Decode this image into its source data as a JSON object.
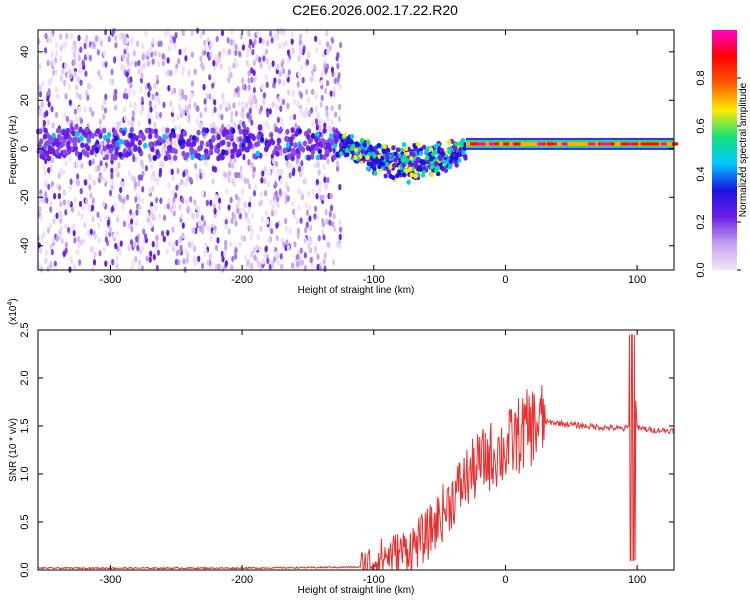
{
  "title": "C2E6.2026.002.17.22.R20",
  "chart_data": [
    {
      "type": "heatmap",
      "title": "C2E6.2026.002.17.22.R20",
      "xlabel": "Height of straight line (km)",
      "ylabel": "Frequency (Hz)",
      "xlim": [
        -355,
        128
      ],
      "ylim": [
        -50,
        49
      ],
      "xticks": [
        -300,
        -200,
        -100,
        0,
        100
      ],
      "yticks": [
        -40,
        -20,
        0,
        20,
        40
      ],
      "colorbar": {
        "label": "Normalized spectral amplitude",
        "range": [
          0,
          1
        ],
        "ticks": [
          "0.0",
          "0.2",
          "0.4",
          "0.6",
          "0.8"
        ],
        "colors": [
          "#f3e6f7",
          "#c59ef0",
          "#6a1ee6",
          "#1a14e0",
          "#00c8ff",
          "#14e27a",
          "#ffea00",
          "#ff5a00",
          "#ff0000",
          "#ff00c8"
        ]
      },
      "pattern": {
        "noise_region_x": [
          -355,
          -125
        ],
        "center_frequency_hz": 2,
        "drift_region_x": [
          -125,
          -30
        ],
        "drift_min_frequency_hz": -10,
        "stable_region_x": [
          -30,
          128
        ]
      }
    },
    {
      "type": "line",
      "xlabel": "Height of straight line (km)",
      "ylabel": "SNR (10 * v/v)",
      "y_multiplier": "(x10",
      "y_exponent": "4",
      "xlim": [
        -355,
        128
      ],
      "ylim": [
        0,
        2.5
      ],
      "xticks": [
        -300,
        -200,
        -100,
        0,
        100
      ],
      "yticks": [
        "0.0",
        "0.5",
        "1.0",
        "1.5",
        "2.0",
        "2.5"
      ],
      "series": [
        {
          "name": "SNR",
          "color": "#e83030",
          "x": [
            -355,
            -200,
            -110,
            -100,
            -90,
            -80,
            -70,
            -60,
            -50,
            -40,
            -30,
            -20,
            -10,
            0,
            10,
            20,
            30,
            40,
            60,
            80,
            90,
            95,
            97,
            100,
            110,
            128
          ],
          "y": [
            0.02,
            0.02,
            0.03,
            0.1,
            0.15,
            0.18,
            0.25,
            0.35,
            0.55,
            0.75,
            0.95,
            1.1,
            1.2,
            1.25,
            1.4,
            1.5,
            1.54,
            1.53,
            1.5,
            1.48,
            1.47,
            1.5,
            2.4,
            1.48,
            1.46,
            1.45
          ]
        }
      ]
    }
  ]
}
